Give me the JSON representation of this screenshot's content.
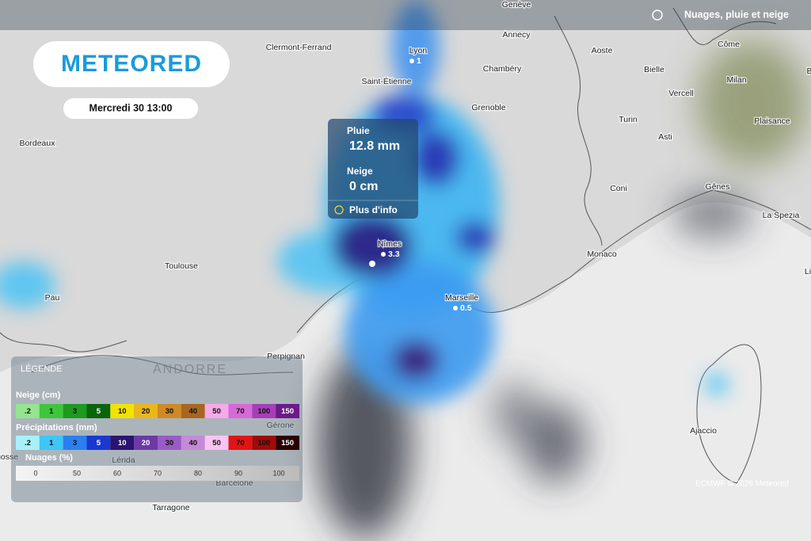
{
  "header": {
    "logo": "METEORED",
    "date": "Mercredi 30 13:00",
    "layer": "Nuages, pluie et neige"
  },
  "popup": {
    "rain_label": "Pluie",
    "rain_value": "12.8 mm",
    "snow_label": "Neige",
    "snow_value": "0 cm",
    "more": "Plus d'info"
  },
  "places": [
    {
      "name": "Genève"
    },
    {
      "name": "Annecy"
    },
    {
      "name": "Lyon",
      "value": "1"
    },
    {
      "name": "Clermont-Ferrand"
    },
    {
      "name": "Aoste"
    },
    {
      "name": "Côme"
    },
    {
      "name": "Milan"
    },
    {
      "name": "Brescia"
    },
    {
      "name": "Chambéry"
    },
    {
      "name": "Saint-Étienne"
    },
    {
      "name": "Bielle"
    },
    {
      "name": "Vercell"
    },
    {
      "name": "Grenoble"
    },
    {
      "name": "Turin"
    },
    {
      "name": "Plaisance"
    },
    {
      "name": "Bordeaux"
    },
    {
      "name": "Asti"
    },
    {
      "name": "Coni"
    },
    {
      "name": "Gênes"
    },
    {
      "name": "La Spezia"
    },
    {
      "name": "Nîmes",
      "value": "3.3"
    },
    {
      "name": "Monaco"
    },
    {
      "name": "Toulouse"
    },
    {
      "name": "Pau"
    },
    {
      "name": "Marseille",
      "value": "0.5"
    },
    {
      "name": "Perpignan"
    },
    {
      "name": "ANDORRE"
    },
    {
      "name": "Gérone"
    },
    {
      "name": "Lérida"
    },
    {
      "name": "Barcelone"
    },
    {
      "name": "Tarragone"
    },
    {
      "name": "Ajaccio"
    },
    {
      "name": "Livourne"
    },
    {
      "name": "Saragosse"
    }
  ],
  "credit": "ECMWF © 2026 Meteored",
  "legend": {
    "title": "LÉGENDE",
    "snow": {
      "title": "Neige (cm)",
      "items": [
        {
          "label": ".2",
          "color": "#93e58f"
        },
        {
          "label": "1",
          "color": "#3cc63c"
        },
        {
          "label": "3",
          "color": "#1e9a1e"
        },
        {
          "label": "5",
          "color": "#0a640a"
        },
        {
          "label": "10",
          "color": "#f3e300"
        },
        {
          "label": "20",
          "color": "#e8b71a"
        },
        {
          "label": "30",
          "color": "#d08a24"
        },
        {
          "label": "40",
          "color": "#a86620"
        },
        {
          "label": "50",
          "color": "#f6abe8"
        },
        {
          "label": "70",
          "color": "#d66ad8"
        },
        {
          "label": "100",
          "color": "#a63fb8"
        },
        {
          "label": "150",
          "color": "#6b1a8a"
        }
      ]
    },
    "rain": {
      "title": "Précipitations (mm)",
      "items": [
        {
          "label": ".2",
          "color": "#a9f1f8"
        },
        {
          "label": "1",
          "color": "#3fc6f5"
        },
        {
          "label": "3",
          "color": "#2b7ff0"
        },
        {
          "label": "5",
          "color": "#1a38d0"
        },
        {
          "label": "10",
          "color": "#2b1470"
        },
        {
          "label": "20",
          "color": "#6b3aa6"
        },
        {
          "label": "30",
          "color": "#9a5cc4"
        },
        {
          "label": "40",
          "color": "#c48ad9"
        },
        {
          "label": "50",
          "color": "#f8c4f1"
        },
        {
          "label": "70",
          "color": "#e01414"
        },
        {
          "label": "100",
          "color": "#a00a0a"
        },
        {
          "label": "150",
          "color": "#2b0000"
        }
      ]
    },
    "clouds": {
      "title": "Nuages (%)",
      "labels": [
        "0",
        "50",
        "60",
        "70",
        "80",
        "90",
        "100"
      ]
    }
  }
}
